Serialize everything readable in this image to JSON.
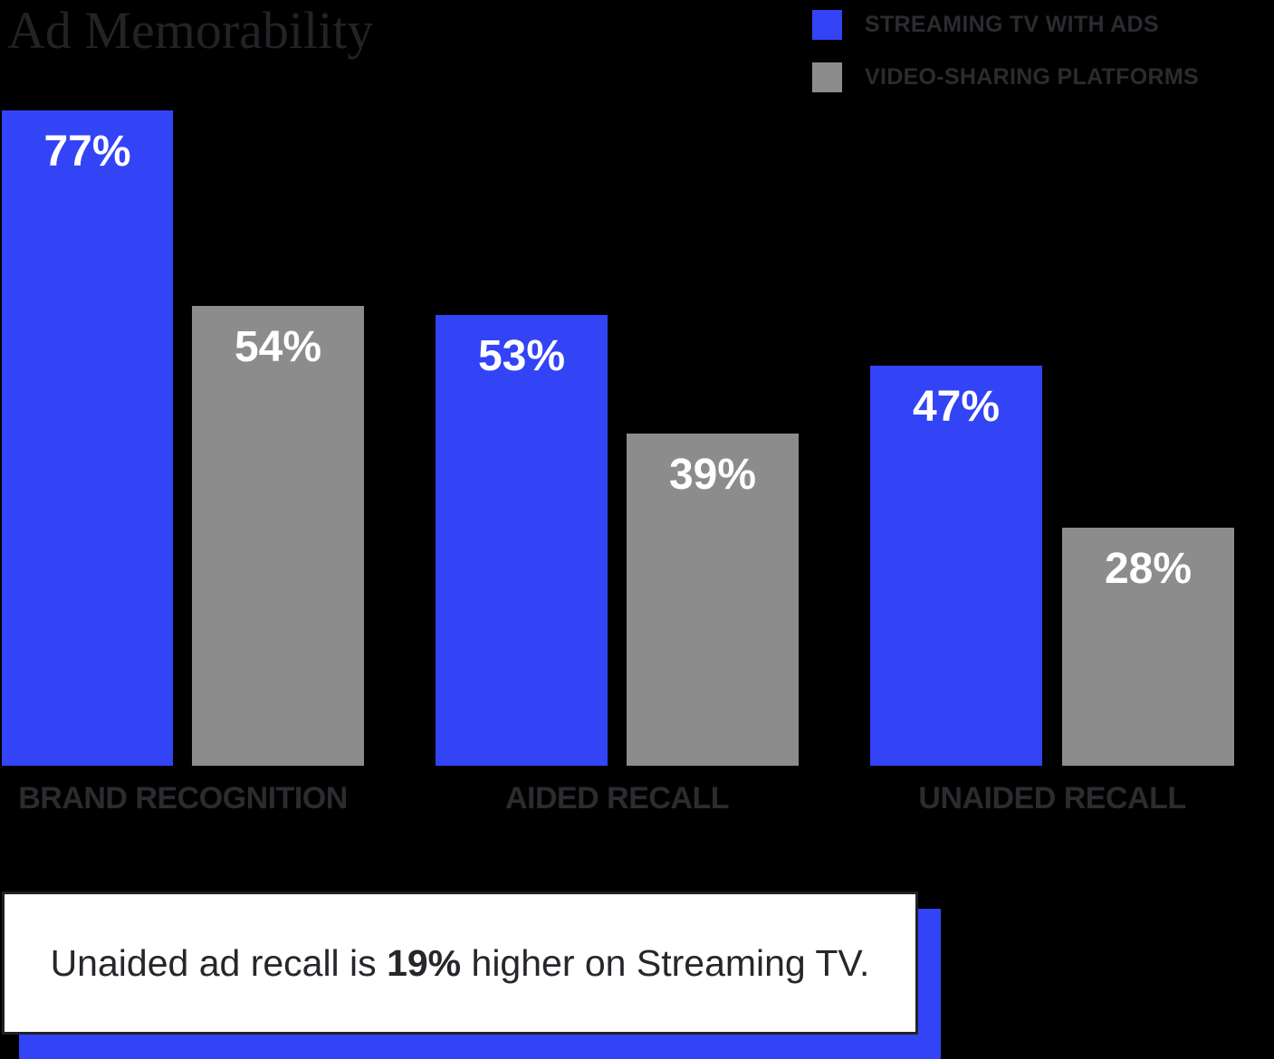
{
  "title": "Ad Memorability",
  "legend": {
    "items": [
      {
        "label": "STREAMING TV WITH ADS",
        "color": "#3343f6"
      },
      {
        "label": "VIDEO-SHARING PLATFORMS",
        "color": "#8c8c8c"
      }
    ]
  },
  "chart_data": {
    "type": "bar",
    "title": "Ad Memorability",
    "categories": [
      "BRAND RECOGNITION",
      "AIDED RECALL",
      "UNAIDED RECALL"
    ],
    "series": [
      {
        "name": "STREAMING TV WITH ADS",
        "color": "#3343f6",
        "values": [
          77,
          53,
          47
        ],
        "labels": [
          "77%",
          "53%",
          "47%"
        ]
      },
      {
        "name": "VIDEO-SHARING PLATFORMS",
        "color": "#8c8c8c",
        "values": [
          54,
          39,
          28
        ],
        "labels": [
          "54%",
          "39%",
          "28%"
        ]
      }
    ],
    "value_unit": "%",
    "ylim": [
      0,
      100
    ],
    "grid": false,
    "axes_shown": false,
    "legend_position": "top-right",
    "value_labels_position": "inside-top",
    "background": "#000000"
  },
  "callout": {
    "prefix": "Unaided ad recall is ",
    "highlight": "19%",
    "suffix": " higher on Streaming TV.",
    "background": "#ffffff",
    "border_color": "#222226",
    "shadow_color": "#3343f6"
  },
  "colors": {
    "background": "#000000",
    "streaming_blue": "#3343f6",
    "platform_gray": "#8c8c8c",
    "dark_text": "#2b2b30",
    "bar_label_text": "#ffffff"
  }
}
